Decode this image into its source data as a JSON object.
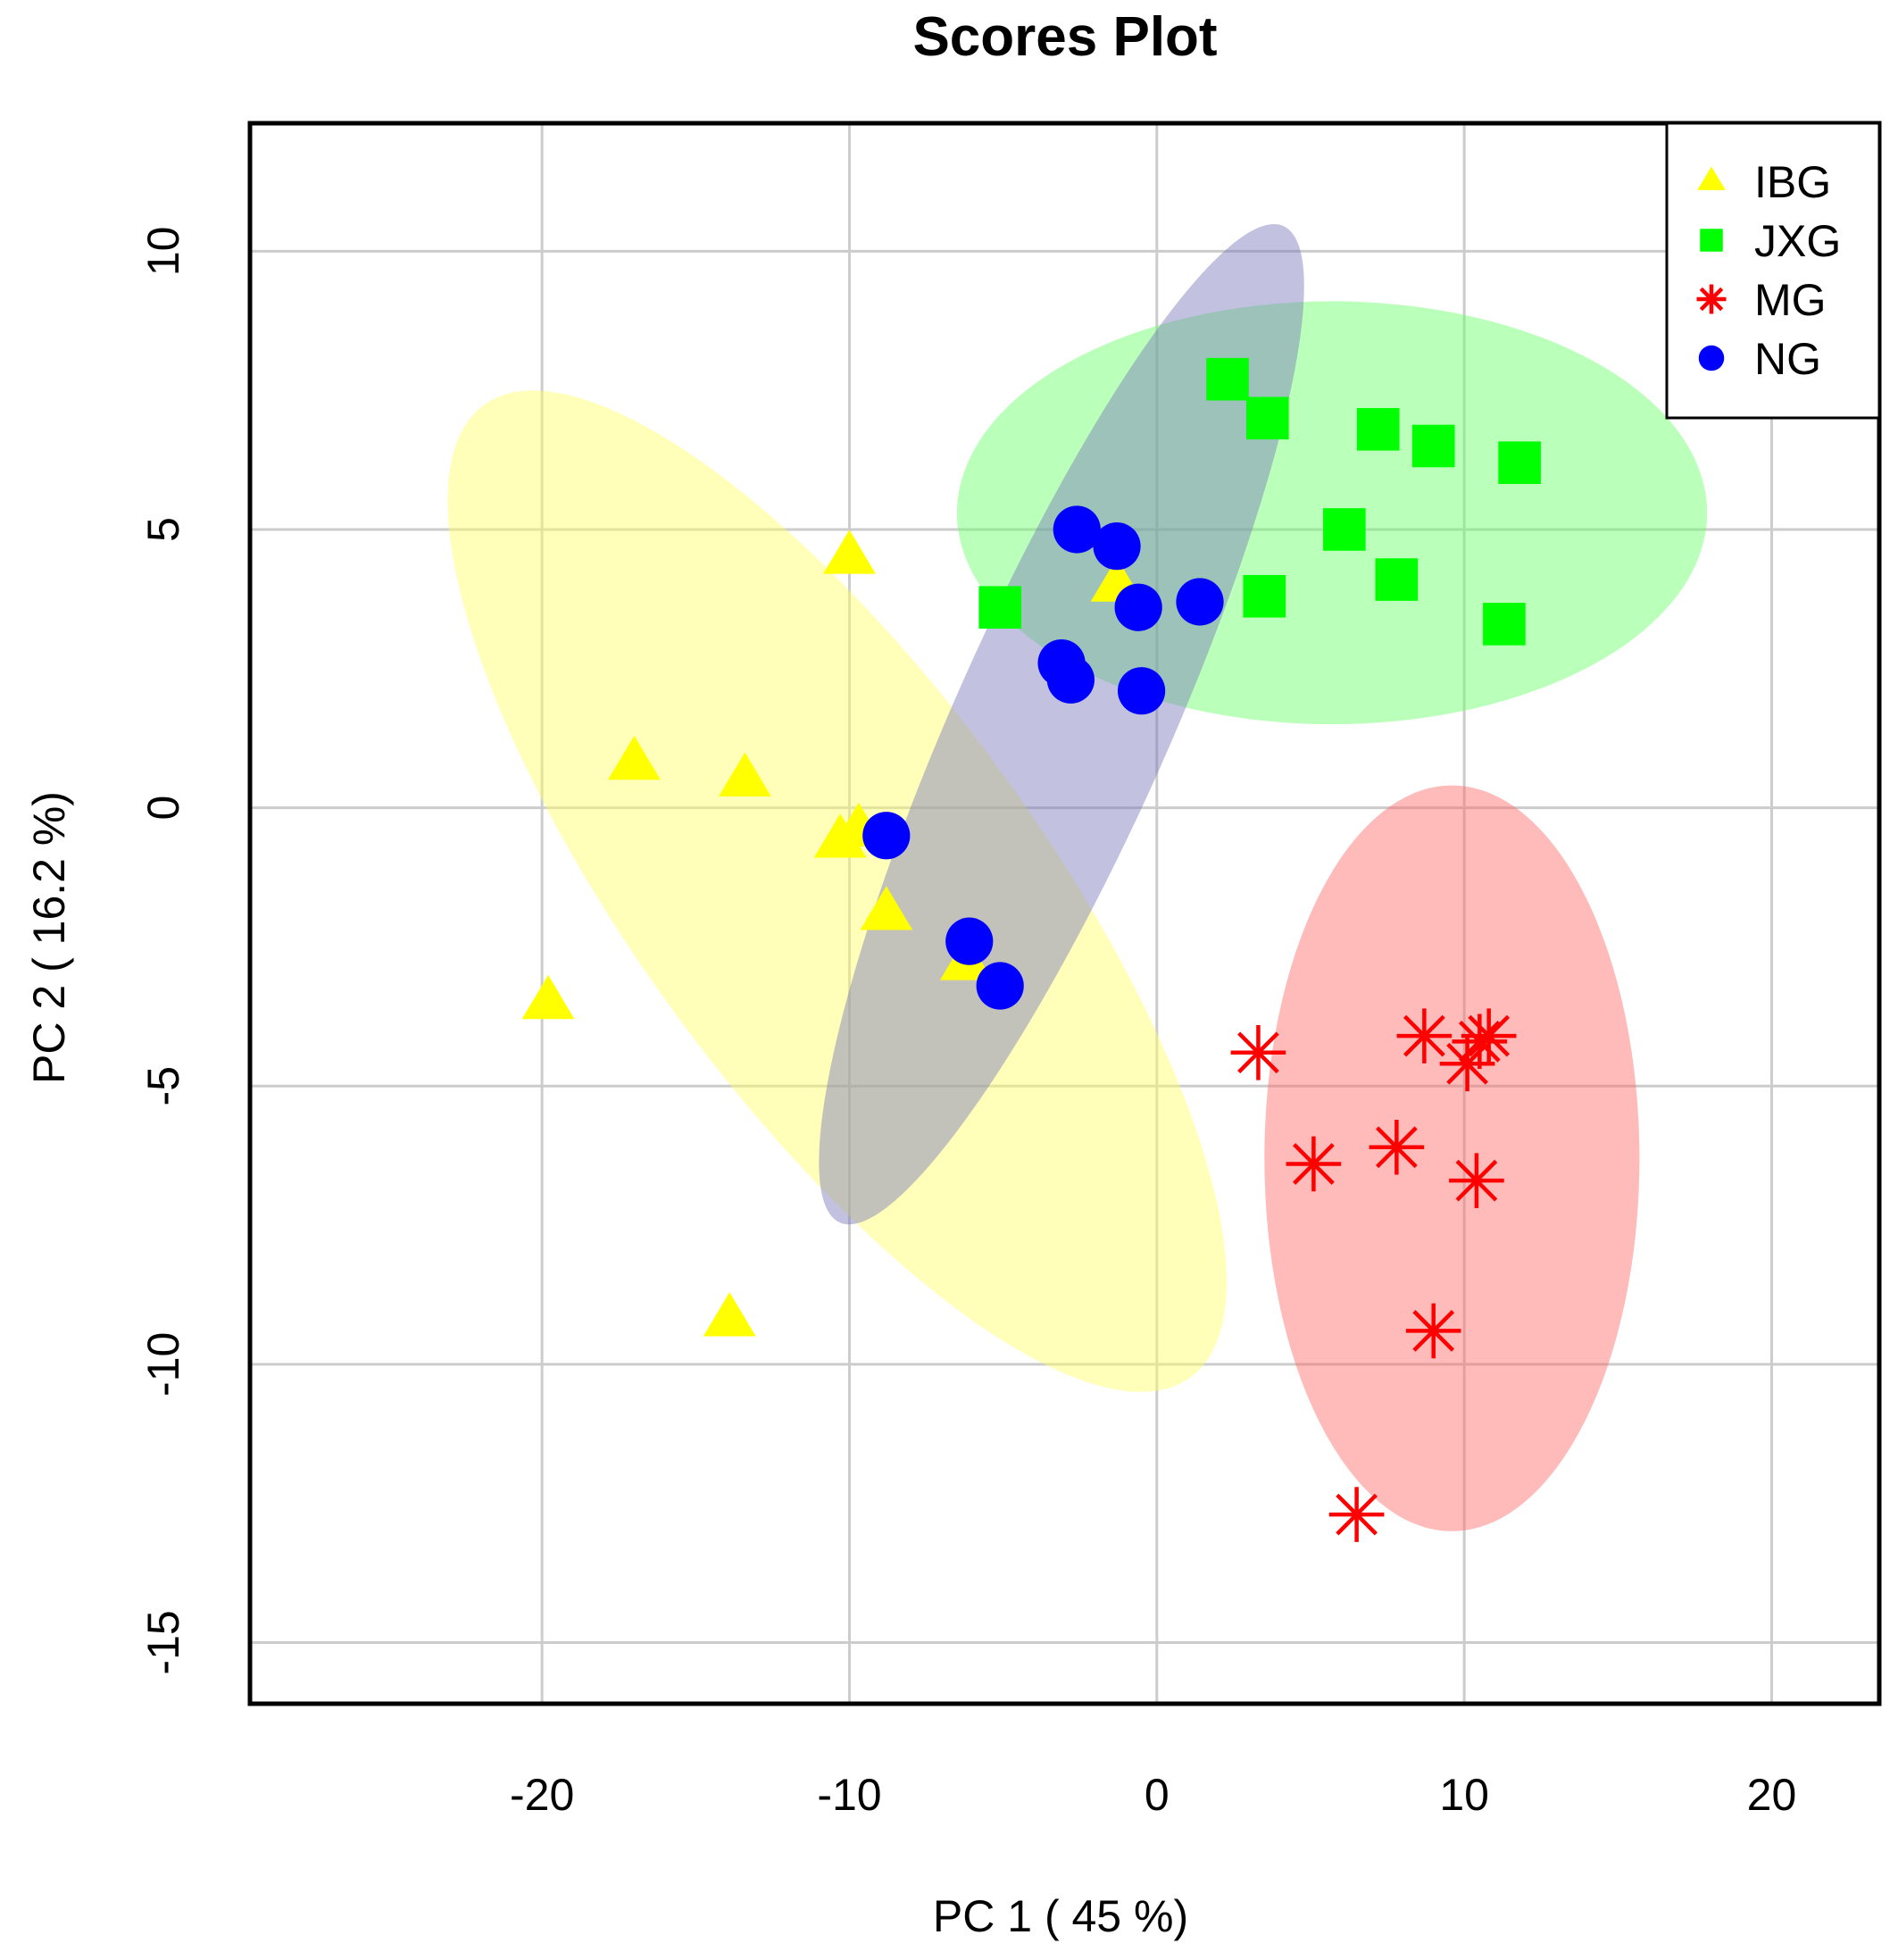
{
  "chart_data": {
    "type": "scatter",
    "title": "Scores Plot",
    "xlabel": "PC 1 ( 45 %)",
    "ylabel": "PC 2 ( 16.2 %)",
    "xlim": [
      -29.5,
      23.5
    ],
    "ylim": [
      -16.1,
      12.3
    ],
    "x_ticks": [
      -20,
      -10,
      0,
      10,
      20
    ],
    "y_ticks": [
      -15,
      -10,
      -5,
      0,
      5,
      10
    ],
    "x_tick_labels": [
      "-20",
      "-10",
      "0",
      "10",
      "20"
    ],
    "y_tick_labels": [
      "-15",
      "-10",
      "-5",
      "0",
      "5",
      "10"
    ],
    "grid": true,
    "legend_position": "top-right",
    "series": [
      {
        "name": "IBG",
        "marker": "triangle",
        "color": "#ffff00",
        "ellipse_color": "#ffff66",
        "points": [
          [
            -10,
            4.5
          ],
          [
            -1.3,
            4.0
          ],
          [
            -17,
            0.8
          ],
          [
            -13.4,
            0.5
          ],
          [
            -9.7,
            -0.4
          ],
          [
            -10.3,
            -0.6
          ],
          [
            -8.8,
            -1.9
          ],
          [
            -6.2,
            -2.8
          ],
          [
            -19.8,
            -3.5
          ],
          [
            -13.9,
            -9.2
          ]
        ],
        "ellipse": {
          "cx": -10.4,
          "cy": -1.5,
          "rx": 6.6,
          "ry": 10.8,
          "angle": -36
        }
      },
      {
        "name": "JXG",
        "marker": "square",
        "color": "#00ff00",
        "ellipse_color": "#66ff66",
        "points": [
          [
            2.3,
            7.7
          ],
          [
            3.6,
            7.0
          ],
          [
            7.2,
            6.8
          ],
          [
            9.0,
            6.5
          ],
          [
            11.8,
            6.2
          ],
          [
            6.1,
            5.0
          ],
          [
            7.8,
            4.1
          ],
          [
            3.5,
            3.8
          ],
          [
            -5.1,
            3.6
          ],
          [
            11.3,
            3.3
          ]
        ],
        "ellipse": {
          "cx": 5.7,
          "cy": 5.3,
          "rx": 12.2,
          "ry": 3.8,
          "angle": 0
        }
      },
      {
        "name": "MG",
        "marker": "asterisk",
        "color": "#ff0000",
        "ellipse_color": "#ff6666",
        "points": [
          [
            8.7,
            -4.1
          ],
          [
            10.5,
            -4.2
          ],
          [
            10.8,
            -4.1
          ],
          [
            10.1,
            -4.6
          ],
          [
            3.3,
            -4.4
          ],
          [
            7.8,
            -6.1
          ],
          [
            5.1,
            -6.4
          ],
          [
            10.4,
            -6.7
          ],
          [
            9.0,
            -9.4
          ],
          [
            6.5,
            -12.7
          ]
        ],
        "ellipse": {
          "cx": 9.6,
          "cy": -6.3,
          "rx": 6.1,
          "ry": 6.7,
          "angle": 0
        }
      },
      {
        "name": "NG",
        "marker": "circle",
        "color": "#0000ff",
        "ellipse_color": "#7777bb",
        "points": [
          [
            -2.6,
            5.0
          ],
          [
            -1.3,
            4.7
          ],
          [
            -0.6,
            3.6
          ],
          [
            1.4,
            3.7
          ],
          [
            -3.1,
            2.6
          ],
          [
            -2.8,
            2.3
          ],
          [
            -0.5,
            2.1
          ],
          [
            -8.8,
            -0.5
          ],
          [
            -6.1,
            -2.4
          ],
          [
            -5.1,
            -3.2
          ]
        ],
        "ellipse": {
          "cx": -3.1,
          "cy": 1.5,
          "rx": 3.5,
          "ry": 9.8,
          "angle": 24
        }
      }
    ]
  }
}
